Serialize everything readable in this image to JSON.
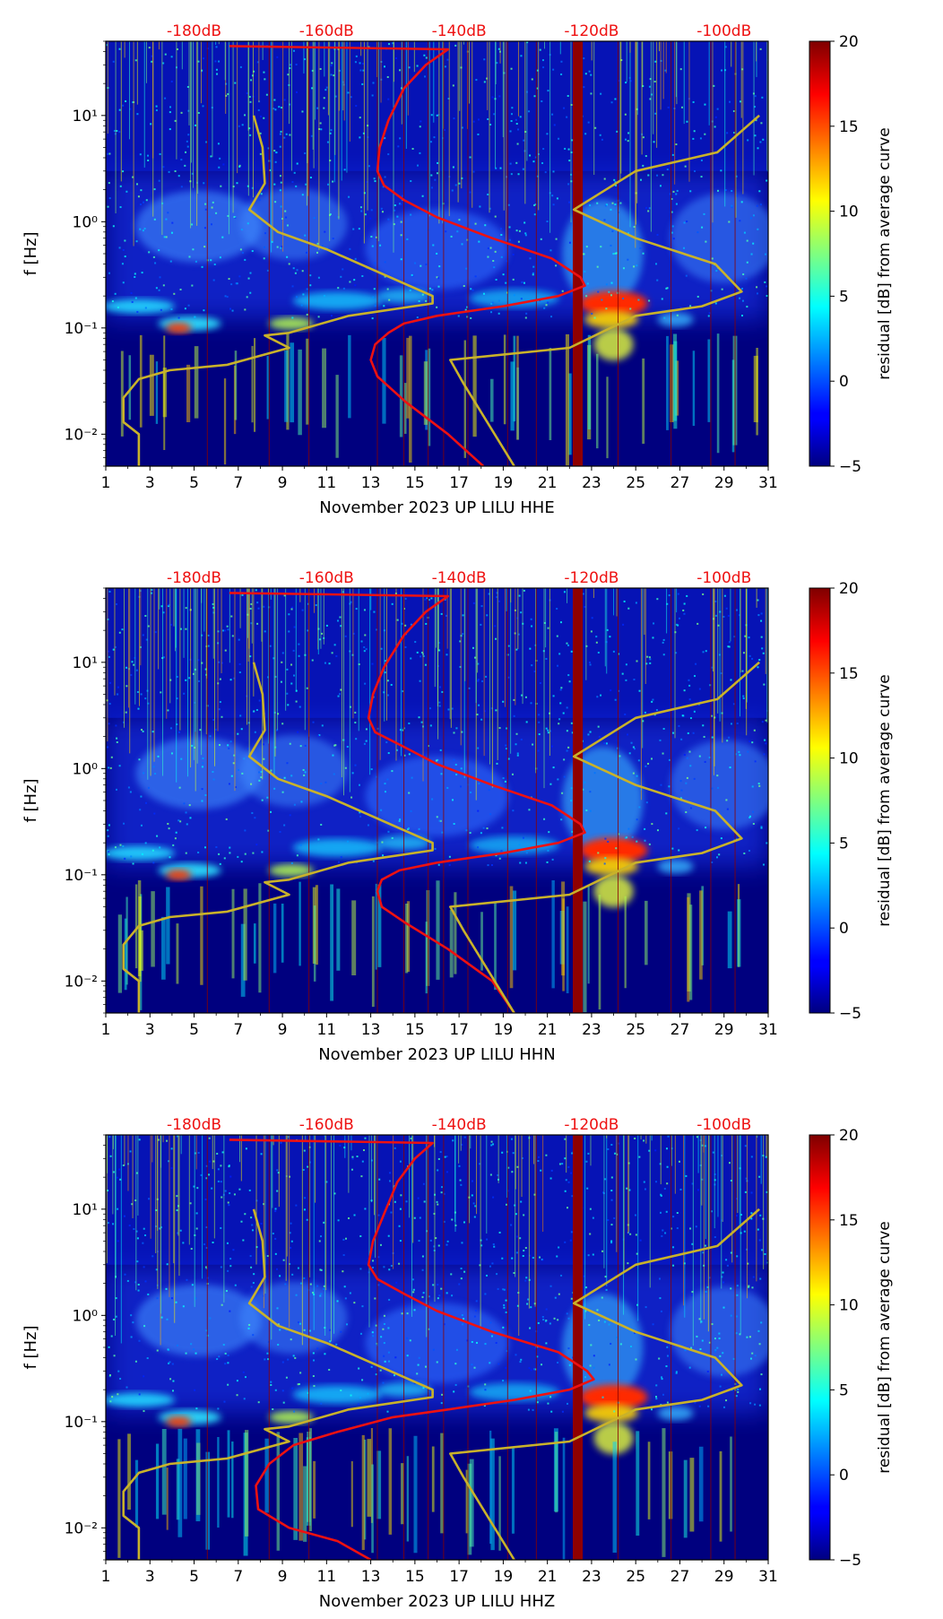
{
  "figure": {
    "colorbar": {
      "label": "residual [dB] from average curve",
      "ticks": [
        "20",
        "15",
        "10",
        "5",
        "0",
        "−5"
      ],
      "range": [
        -5,
        20
      ],
      "colormap": "jet"
    },
    "colors": {
      "psd_curve": "#ee1111",
      "noise_model": "#c9b22a",
      "top_labels": "#ee1111",
      "background": "#00007f"
    }
  },
  "chart_data": [
    {
      "type": "heatmap",
      "title": "",
      "xlabel": "November 2023 UP LILU  HHE",
      "ylabel": "f [Hz]",
      "x_ticks": [
        "1",
        "3",
        "5",
        "7",
        "9",
        "11",
        "13",
        "15",
        "17",
        "19",
        "21",
        "23",
        "25",
        "27",
        "29",
        "31"
      ],
      "y_ticks": [
        "10¹",
        "10⁰",
        "10⁻¹",
        "10⁻²"
      ],
      "top_labels": [
        "-180dB",
        "-160dB",
        "-140dB",
        "-120dB",
        "-100dB"
      ],
      "xlim": [
        1,
        31
      ],
      "ylim": [
        0.005,
        50
      ],
      "series": [
        {
          "name": "average PSD curve",
          "x": [
            6.6,
            16.5,
            15.5,
            14.5,
            13.8,
            13.4,
            13.3,
            13.6,
            14.5,
            16,
            18.5,
            21.2,
            22.5,
            22.7,
            21.5,
            19,
            16,
            14.5,
            13.8,
            13.2,
            13.0,
            13.3,
            14.6,
            16.5,
            18.1
          ],
          "y": [
            45,
            42,
            30,
            18,
            9,
            5,
            3,
            2.2,
            1.6,
            1.1,
            0.7,
            0.45,
            0.3,
            0.25,
            0.2,
            0.16,
            0.13,
            0.11,
            0.09,
            0.07,
            0.05,
            0.035,
            0.02,
            0.01,
            0.005
          ]
        },
        {
          "name": "noise model low",
          "x": [
            7.7,
            8.1,
            8.2,
            7.5,
            8.8,
            11,
            15.8,
            15.8,
            12,
            9.3,
            8.2,
            9.3,
            6.5,
            3.9,
            2.5,
            1.8,
            1.8,
            2.5,
            2.5
          ],
          "y": [
            10,
            5,
            2.3,
            1.3,
            0.8,
            0.55,
            0.2,
            0.17,
            0.13,
            0.09,
            0.085,
            0.065,
            0.045,
            0.04,
            0.033,
            0.022,
            0.013,
            0.01,
            0.005
          ]
        },
        {
          "name": "noise model high",
          "x": [
            30.6,
            28.7,
            25,
            22.2,
            25,
            28.6,
            29.8,
            28,
            25,
            22,
            16.6,
            17.2,
            19.5
          ],
          "y": [
            10,
            4.5,
            3,
            1.3,
            0.7,
            0.4,
            0.22,
            0.16,
            0.13,
            0.065,
            0.05,
            0.03,
            0.005
          ]
        }
      ]
    },
    {
      "type": "heatmap",
      "title": "",
      "xlabel": "November 2023 UP LILU  HHN",
      "ylabel": "f [Hz]",
      "x_ticks": [
        "1",
        "3",
        "5",
        "7",
        "9",
        "11",
        "13",
        "15",
        "17",
        "19",
        "21",
        "23",
        "25",
        "27",
        "29",
        "31"
      ],
      "y_ticks": [
        "10¹",
        "10⁰",
        "10⁻¹",
        "10⁻²"
      ],
      "top_labels": [
        "-180dB",
        "-160dB",
        "-140dB",
        "-120dB",
        "-100dB"
      ],
      "xlim": [
        1,
        31
      ],
      "ylim": [
        0.005,
        50
      ],
      "series": [
        {
          "name": "average PSD curve",
          "x": [
            6.6,
            16.5,
            15.5,
            14.5,
            13.6,
            13.1,
            12.9,
            13.2,
            14.5,
            16,
            18.5,
            21.2,
            22.5,
            22.7,
            21.5,
            19,
            16,
            14.3,
            13.5,
            13.3,
            13.5,
            14.6,
            16.5,
            18.5,
            19.5
          ],
          "y": [
            45,
            42,
            30,
            18,
            9,
            5,
            3,
            2.2,
            1.6,
            1.1,
            0.7,
            0.45,
            0.3,
            0.25,
            0.2,
            0.16,
            0.13,
            0.11,
            0.09,
            0.07,
            0.05,
            0.035,
            0.02,
            0.01,
            0.005
          ]
        },
        {
          "name": "noise model low",
          "x": [
            7.7,
            8.1,
            8.2,
            7.5,
            8.8,
            11,
            15.8,
            15.8,
            12,
            9.3,
            8.2,
            9.3,
            6.5,
            3.9,
            2.5,
            1.8,
            1.8,
            2.5,
            2.5
          ],
          "y": [
            10,
            5,
            2.3,
            1.3,
            0.8,
            0.55,
            0.2,
            0.17,
            0.13,
            0.09,
            0.085,
            0.065,
            0.045,
            0.04,
            0.033,
            0.022,
            0.013,
            0.01,
            0.005
          ]
        },
        {
          "name": "noise model high",
          "x": [
            30.6,
            28.7,
            25,
            22.2,
            25,
            28.6,
            29.8,
            28,
            25,
            22,
            16.6,
            17.2,
            19.5
          ],
          "y": [
            10,
            4.5,
            3,
            1.3,
            0.7,
            0.4,
            0.22,
            0.16,
            0.13,
            0.065,
            0.05,
            0.03,
            0.005
          ]
        }
      ]
    },
    {
      "type": "heatmap",
      "title": "",
      "xlabel": "November 2023 UP LILU  HHZ",
      "ylabel": "f [Hz]",
      "x_ticks": [
        "1",
        "3",
        "5",
        "7",
        "9",
        "11",
        "13",
        "15",
        "17",
        "19",
        "21",
        "23",
        "25",
        "27",
        "29",
        "31"
      ],
      "y_ticks": [
        "10¹",
        "10⁰",
        "10⁻¹",
        "10⁻²"
      ],
      "top_labels": [
        "-180dB",
        "-160dB",
        "-140dB",
        "-120dB",
        "-100dB"
      ],
      "xlim": [
        1,
        31
      ],
      "ylim": [
        0.005,
        50
      ],
      "series": [
        {
          "name": "average PSD curve",
          "x": [
            6.6,
            15.8,
            15.0,
            14.2,
            13.6,
            13.1,
            12.9,
            13.3,
            14.5,
            16,
            18.5,
            21.5,
            22.8,
            23.1,
            22.0,
            19.5,
            16.5,
            14,
            11.5,
            9.5,
            8.4,
            7.8,
            7.9,
            9.3,
            11.5,
            13.0
          ],
          "y": [
            45,
            42,
            30,
            18,
            9,
            5,
            3,
            2.2,
            1.6,
            1.1,
            0.7,
            0.45,
            0.3,
            0.25,
            0.2,
            0.16,
            0.13,
            0.11,
            0.08,
            0.06,
            0.04,
            0.025,
            0.015,
            0.01,
            0.0075,
            0.005
          ]
        },
        {
          "name": "noise model low",
          "x": [
            7.7,
            8.1,
            8.2,
            7.5,
            8.8,
            11,
            15.8,
            15.8,
            12,
            9.3,
            8.2,
            9.3,
            6.5,
            3.9,
            2.5,
            1.8,
            1.8,
            2.5,
            2.5
          ],
          "y": [
            10,
            5,
            2.3,
            1.3,
            0.8,
            0.55,
            0.2,
            0.17,
            0.13,
            0.09,
            0.085,
            0.065,
            0.045,
            0.04,
            0.033,
            0.022,
            0.013,
            0.01,
            0.005
          ]
        },
        {
          "name": "noise model high",
          "x": [
            30.6,
            28.7,
            25,
            22.2,
            25,
            28.6,
            29.8,
            28,
            25,
            22,
            16.6,
            17.2,
            19.5
          ],
          "y": [
            10,
            4.5,
            3,
            1.3,
            0.7,
            0.4,
            0.22,
            0.16,
            0.13,
            0.065,
            0.05,
            0.03,
            0.005
          ]
        }
      ]
    }
  ]
}
